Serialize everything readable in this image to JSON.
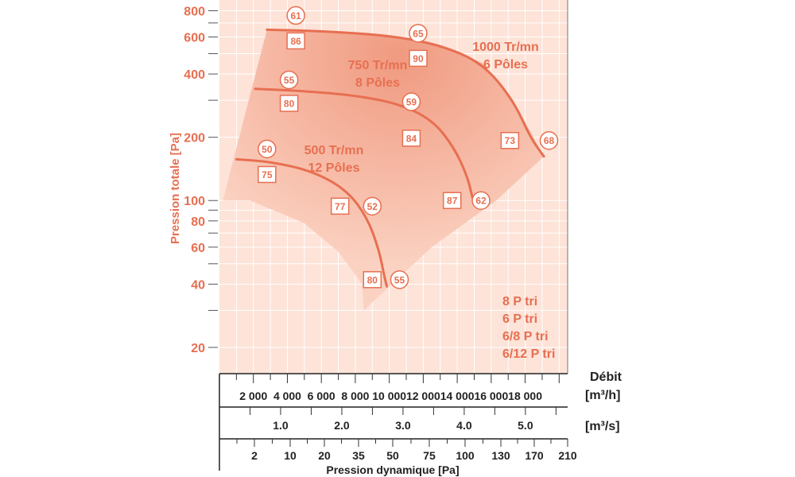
{
  "chart_data": {
    "type": "line",
    "ylabel": "Pression totale [Pa]",
    "yscale": "log",
    "ylim": [
      15,
      900
    ],
    "y_ticks": [
      "800",
      "600",
      "400",
      "200",
      "100",
      "80",
      "60",
      "40",
      "20"
    ],
    "x_axes": [
      {
        "label": "[m³/h]",
        "range": [
          0,
          20500
        ],
        "ticks": [
          "2 000",
          "4 000",
          "6 000",
          "8 000",
          "10 000",
          "12 000",
          "14 000",
          "16 000",
          "18 000"
        ]
      },
      {
        "label": "[m³/s]",
        "range": [
          0,
          5.69
        ],
        "ticks": [
          "1.0",
          "2.0",
          "3.0",
          "4.0",
          "5.0"
        ]
      },
      {
        "label": "Pression dynamique [Pa]",
        "ticks": [
          "2",
          "10",
          "20",
          "35",
          "50",
          "75",
          "100",
          "130",
          "170",
          "210"
        ]
      }
    ],
    "top_axis_title": "Débit",
    "series": [
      {
        "name": "1000 Tr/mn 6 Pôles",
        "label_lines": [
          "1000 Tr/mn",
          "6 Pôles"
        ],
        "points": [
          [
            2800,
            650
          ],
          [
            6000,
            640
          ],
          [
            10000,
            610
          ],
          [
            13000,
            550
          ],
          [
            15500,
            450
          ],
          [
            17300,
            300
          ],
          [
            18300,
            200
          ],
          [
            19100,
            162
          ]
        ],
        "circles": [
          {
            "text": "61",
            "x": 4500,
            "y": 760
          },
          {
            "text": "65",
            "x": 11700,
            "y": 625
          },
          {
            "text": "68",
            "x": 19400,
            "y": 193
          }
        ],
        "boxes": [
          {
            "text": "86",
            "x": 4500,
            "y": 575
          },
          {
            "text": "90",
            "x": 11700,
            "y": 475
          },
          {
            "text": "73",
            "x": 17100,
            "y": 193
          }
        ]
      },
      {
        "name": "750 Tr/mn 8 Pôles",
        "label_lines": [
          "750 Tr/mn",
          "8 Pôles"
        ],
        "points": [
          [
            2100,
            340
          ],
          [
            5000,
            332
          ],
          [
            8000,
            316
          ],
          [
            10500,
            290
          ],
          [
            12500,
            243
          ],
          [
            13800,
            180
          ],
          [
            14600,
            130
          ],
          [
            14900,
            103
          ]
        ],
        "circles": [
          {
            "text": "55",
            "x": 4100,
            "y": 375
          },
          {
            "text": "59",
            "x": 11300,
            "y": 295
          },
          {
            "text": "62",
            "x": 15400,
            "y": 100
          }
        ],
        "boxes": [
          {
            "text": "80",
            "x": 4100,
            "y": 290
          },
          {
            "text": "84",
            "x": 11300,
            "y": 198
          },
          {
            "text": "87",
            "x": 13700,
            "y": 100
          }
        ]
      },
      {
        "name": "500 Tr/mn 12 Pôles",
        "label_lines": [
          "500 Tr/mn",
          "12 Pôles"
        ],
        "points": [
          [
            1000,
            157
          ],
          [
            3000,
            153
          ],
          [
            5500,
            138
          ],
          [
            7500,
            112
          ],
          [
            8700,
            83
          ],
          [
            9400,
            58
          ],
          [
            9700,
            44
          ],
          [
            9850,
            39
          ]
        ],
        "circles": [
          {
            "text": "50",
            "x": 2800,
            "y": 176
          },
          {
            "text": "52",
            "x": 9000,
            "y": 94
          },
          {
            "text": "55",
            "x": 10600,
            "y": 42
          }
        ],
        "boxes": [
          {
            "text": "75",
            "x": 2800,
            "y": 133
          },
          {
            "text": "77",
            "x": 7100,
            "y": 94
          },
          {
            "text": "80",
            "x": 9000,
            "y": 42
          }
        ]
      }
    ],
    "operating_zone": [
      [
        200,
        100
      ],
      [
        1800,
        100
      ],
      [
        5000,
        78
      ],
      [
        7000,
        57
      ],
      [
        8400,
        40
      ],
      [
        8500,
        30
      ],
      [
        12500,
        60
      ],
      [
        16300,
        100
      ],
      [
        19100,
        162
      ],
      [
        17300,
        300
      ],
      [
        15500,
        450
      ],
      [
        13000,
        550
      ],
      [
        10000,
        610
      ],
      [
        6000,
        640
      ],
      [
        2800,
        650
      ]
    ],
    "legend_lines": [
      "8 P tri",
      "6 P tri",
      "6/8 P tri",
      "6/12 P tri"
    ],
    "grid": true
  },
  "colors": {
    "accent": "#e76f51",
    "plot_background": "#fde3d8",
    "zone_light": "#f9c2ac",
    "zone_dark": "#f09a80",
    "grid": "#ffffff",
    "axis_text": "#222222"
  }
}
